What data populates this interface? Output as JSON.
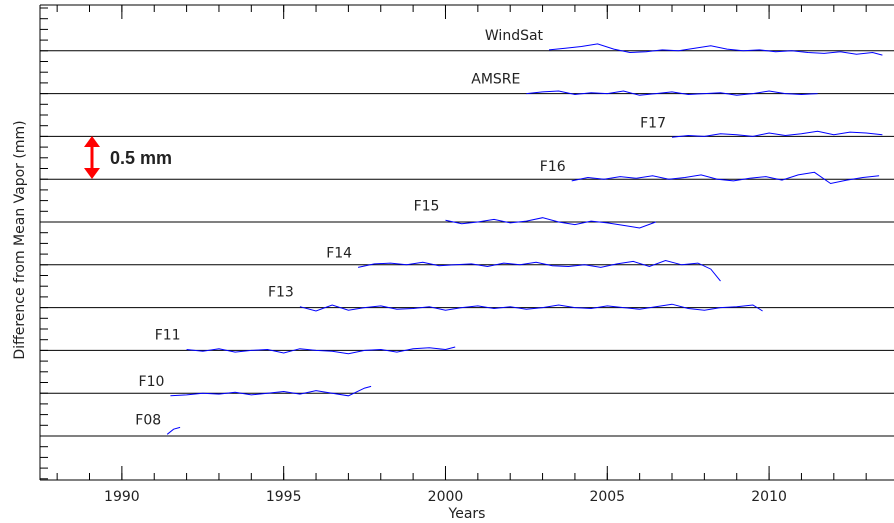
{
  "chart_data": {
    "type": "line",
    "x_label": "Years",
    "y_label": "Difference from Mean Vapor (mm)",
    "annotation": "0.5 mm",
    "annotation_color": "#ff0000",
    "xlim": [
      1987.47,
      2013.86
    ],
    "xticks": [
      1990,
      1995,
      2000,
      2005,
      2010
    ],
    "ylim": [
      -0.514,
      5.035
    ],
    "yticks": [
      0,
      0.5,
      1,
      1.5,
      2,
      2.5,
      3,
      3.5,
      4,
      4.5
    ],
    "grid": true,
    "series": [
      {
        "name": "F08",
        "color": "#0000ff",
        "x": [
          1991.4,
          1991.6,
          1991.8
        ],
        "values": [
          0.02,
          0.08,
          0.1
        ]
      },
      {
        "name": "F10",
        "color": "#0000ff",
        "x": [
          1991.5,
          1992.0,
          1992.5,
          1993.0,
          1993.5,
          1994.0,
          1994.5,
          1995.0,
          1995.5,
          1996.0,
          1996.5,
          1997.0,
          1997.5,
          1997.7
        ],
        "values": [
          0.47,
          0.48,
          0.5,
          0.49,
          0.51,
          0.48,
          0.5,
          0.52,
          0.49,
          0.53,
          0.5,
          0.47,
          0.56,
          0.58
        ]
      },
      {
        "name": "F11",
        "color": "#0000ff",
        "x": [
          1992.0,
          1992.5,
          1993.0,
          1993.5,
          1994.0,
          1994.5,
          1995.0,
          1995.5,
          1996.0,
          1996.5,
          1997.0,
          1997.5,
          1998.0,
          1998.5,
          1999.0,
          1999.5,
          2000.0,
          2000.3
        ],
        "values": [
          1.01,
          0.99,
          1.02,
          0.98,
          1.0,
          1.01,
          0.97,
          1.02,
          1.0,
          0.99,
          0.96,
          1.0,
          1.01,
          0.98,
          1.02,
          1.03,
          1.01,
          1.04
        ]
      },
      {
        "name": "F13",
        "color": "#0000ff",
        "x": [
          1995.5,
          1996.0,
          1996.5,
          1997.0,
          1997.5,
          1998.0,
          1998.5,
          1999.0,
          1999.5,
          2000.0,
          2000.5,
          2001.0,
          2001.5,
          2002.0,
          2002.5,
          2003.0,
          2003.5,
          2004.0,
          2004.5,
          2005.0,
          2005.5,
          2006.0,
          2006.5,
          2007.0,
          2007.5,
          2008.0,
          2008.5,
          2009.0,
          2009.5,
          2009.8
        ],
        "values": [
          1.51,
          1.46,
          1.53,
          1.47,
          1.5,
          1.52,
          1.48,
          1.49,
          1.51,
          1.47,
          1.5,
          1.52,
          1.49,
          1.51,
          1.48,
          1.5,
          1.53,
          1.5,
          1.49,
          1.52,
          1.5,
          1.48,
          1.51,
          1.54,
          1.49,
          1.47,
          1.5,
          1.51,
          1.53,
          1.46
        ]
      },
      {
        "name": "F14",
        "color": "#0000ff",
        "x": [
          1997.3,
          1997.8,
          1998.3,
          1998.8,
          1999.3,
          1999.8,
          2000.3,
          2000.8,
          2001.3,
          2001.8,
          2002.3,
          2002.8,
          2003.3,
          2003.8,
          2004.3,
          2004.8,
          2005.3,
          2005.8,
          2006.3,
          2006.8,
          2007.3,
          2007.8,
          2008.2,
          2008.5
        ],
        "values": [
          1.97,
          2.01,
          2.02,
          2.0,
          2.03,
          1.99,
          2.0,
          2.01,
          1.98,
          2.02,
          2.0,
          2.03,
          1.99,
          1.98,
          2.0,
          1.97,
          2.01,
          2.04,
          1.98,
          2.05,
          2.0,
          2.02,
          1.95,
          1.81
        ]
      },
      {
        "name": "F15",
        "color": "#0000ff",
        "x": [
          2000.0,
          2000.5,
          2001.0,
          2001.5,
          2002.0,
          2002.5,
          2003.0,
          2003.5,
          2004.0,
          2004.5,
          2005.0,
          2005.5,
          2006.0,
          2006.5
        ],
        "values": [
          2.52,
          2.48,
          2.5,
          2.53,
          2.49,
          2.51,
          2.55,
          2.5,
          2.47,
          2.51,
          2.49,
          2.46,
          2.43,
          2.5
        ]
      },
      {
        "name": "F16",
        "color": "#0000ff",
        "x": [
          2003.9,
          2004.4,
          2004.9,
          2005.4,
          2005.9,
          2006.4,
          2006.9,
          2007.4,
          2007.9,
          2008.4,
          2008.9,
          2009.4,
          2009.9,
          2010.4,
          2010.9,
          2011.4,
          2011.9,
          2012.4,
          2012.9,
          2013.4
        ],
        "values": [
          2.98,
          3.02,
          3.0,
          3.03,
          3.01,
          3.04,
          3.0,
          3.02,
          3.05,
          3.0,
          2.98,
          3.01,
          3.03,
          2.99,
          3.05,
          3.08,
          2.95,
          2.99,
          3.02,
          3.04
        ]
      },
      {
        "name": "F17",
        "color": "#0000ff",
        "x": [
          2007.0,
          2007.5,
          2008.0,
          2008.5,
          2009.0,
          2009.5,
          2010.0,
          2010.5,
          2011.0,
          2011.5,
          2012.0,
          2012.5,
          2013.0,
          2013.5
        ],
        "values": [
          3.49,
          3.51,
          3.5,
          3.53,
          3.52,
          3.5,
          3.54,
          3.51,
          3.53,
          3.56,
          3.52,
          3.55,
          3.54,
          3.52
        ]
      },
      {
        "name": "AMSRE",
        "color": "#0000ff",
        "x": [
          2002.5,
          2003.0,
          2003.5,
          2004.0,
          2004.5,
          2005.0,
          2005.5,
          2006.0,
          2006.5,
          2007.0,
          2007.5,
          2008.0,
          2008.5,
          2009.0,
          2009.5,
          2010.0,
          2010.5,
          2011.0,
          2011.5
        ],
        "values": [
          4.0,
          4.02,
          4.03,
          3.99,
          4.01,
          4.0,
          4.03,
          3.98,
          4.0,
          4.02,
          3.99,
          4.0,
          4.01,
          3.98,
          4.0,
          4.03,
          4.0,
          3.99,
          4.0
        ]
      },
      {
        "name": "WindSat",
        "color": "#0000ff",
        "x": [
          2003.2,
          2003.7,
          2004.2,
          2004.7,
          2005.2,
          2005.7,
          2006.2,
          2006.7,
          2007.2,
          2007.7,
          2008.2,
          2008.7,
          2009.2,
          2009.7,
          2010.2,
          2010.7,
          2011.2,
          2011.7,
          2012.2,
          2012.7,
          2013.2,
          2013.5
        ],
        "values": [
          4.51,
          4.53,
          4.55,
          4.58,
          4.52,
          4.48,
          4.49,
          4.51,
          4.5,
          4.53,
          4.56,
          4.52,
          4.5,
          4.51,
          4.49,
          4.5,
          4.48,
          4.47,
          4.49,
          4.46,
          4.48,
          4.45
        ]
      }
    ]
  }
}
